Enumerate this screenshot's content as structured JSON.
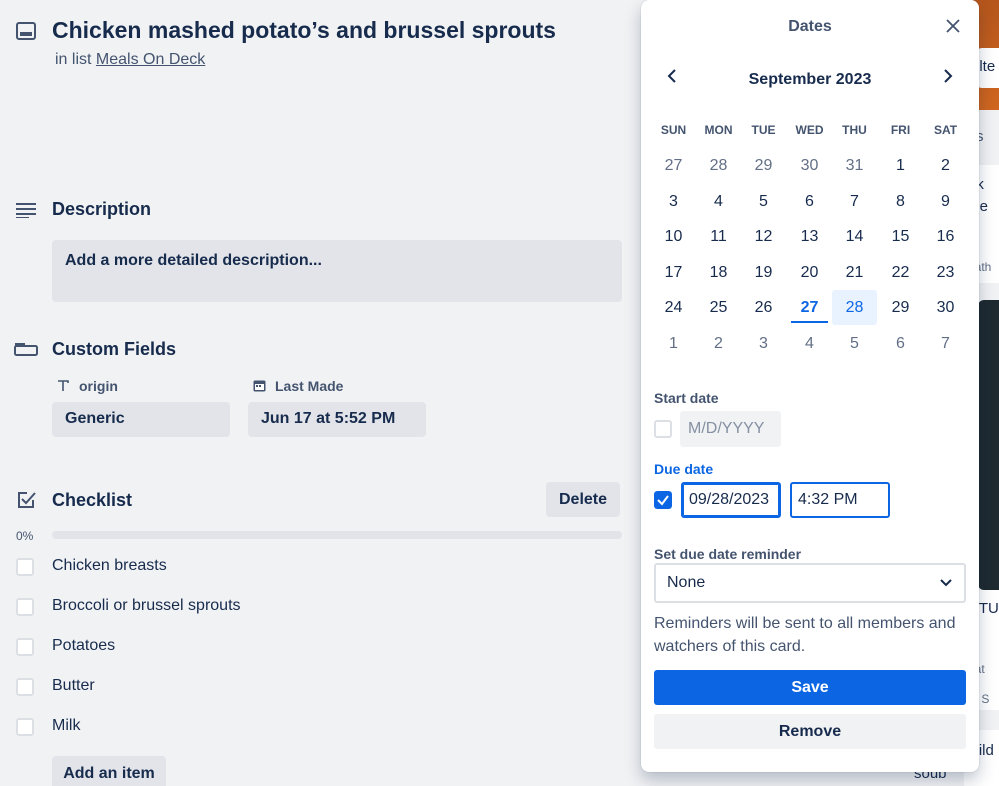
{
  "card": {
    "title": "Chicken mashed potato’s and brussel sprouts",
    "in_list_prefix": "in list",
    "list_name": "Meals On Deck"
  },
  "description": {
    "title": "Description",
    "placeholder": "Add a more detailed description..."
  },
  "custom_fields": {
    "title": "Custom Fields",
    "fields": [
      {
        "label": "origin",
        "value": "Generic",
        "icon": "text-type-icon"
      },
      {
        "label": "Last Made",
        "value": "Jun 17 at 5:52 PM",
        "icon": "calendar-icon"
      }
    ]
  },
  "checklist": {
    "title": "Checklist",
    "delete_label": "Delete",
    "progress_label": "0%",
    "progress": 0,
    "items": [
      {
        "label": "Chicken breasts",
        "checked": false
      },
      {
        "label": "Broccoli or brussel sprouts",
        "checked": false
      },
      {
        "label": "Potatoes",
        "checked": false
      },
      {
        "label": "Butter",
        "checked": false
      },
      {
        "label": "Milk",
        "checked": false
      }
    ],
    "add_item_label": "Add an item"
  },
  "background": {
    "fragments": [
      "ilte",
      "s",
      "ek",
      "nie",
      "eath",
      "UTU",
      "eat",
      "e: S",
      "wild",
      "soub"
    ]
  },
  "dates_popover": {
    "title": "Dates",
    "month_label": "September 2023",
    "weekdays": [
      "SUN",
      "MON",
      "TUE",
      "WED",
      "THU",
      "FRI",
      "SAT"
    ],
    "weeks": [
      [
        {
          "d": "27",
          "o": true
        },
        {
          "d": "28",
          "o": true
        },
        {
          "d": "29",
          "o": true
        },
        {
          "d": "30",
          "o": true
        },
        {
          "d": "31",
          "o": true
        },
        {
          "d": "1"
        },
        {
          "d": "2"
        }
      ],
      [
        {
          "d": "3"
        },
        {
          "d": "4"
        },
        {
          "d": "5"
        },
        {
          "d": "6"
        },
        {
          "d": "7"
        },
        {
          "d": "8"
        },
        {
          "d": "9"
        }
      ],
      [
        {
          "d": "10"
        },
        {
          "d": "11"
        },
        {
          "d": "12"
        },
        {
          "d": "13"
        },
        {
          "d": "14"
        },
        {
          "d": "15"
        },
        {
          "d": "16"
        }
      ],
      [
        {
          "d": "17"
        },
        {
          "d": "18"
        },
        {
          "d": "19"
        },
        {
          "d": "20"
        },
        {
          "d": "21"
        },
        {
          "d": "22"
        },
        {
          "d": "23"
        }
      ],
      [
        {
          "d": "24"
        },
        {
          "d": "25"
        },
        {
          "d": "26"
        },
        {
          "d": "27",
          "today": true
        },
        {
          "d": "28",
          "selected": true
        },
        {
          "d": "29"
        },
        {
          "d": "30"
        }
      ],
      [
        {
          "d": "1",
          "o": true
        },
        {
          "d": "2",
          "o": true
        },
        {
          "d": "3",
          "o": true
        },
        {
          "d": "4",
          "o": true
        },
        {
          "d": "5",
          "o": true
        },
        {
          "d": "6",
          "o": true
        },
        {
          "d": "7",
          "o": true
        }
      ]
    ],
    "start_date": {
      "label": "Start date",
      "placeholder": "M/D/YYYY",
      "checked": false
    },
    "due_date": {
      "label": "Due date",
      "date_value": "09/28/2023",
      "time_value": "4:32 PM",
      "checked": true
    },
    "reminder": {
      "label": "Set due date reminder",
      "selected": "None"
    },
    "help_text": "Reminders will be sent to all members and watchers of this card.",
    "save_label": "Save",
    "remove_label": "Remove"
  },
  "colors": {
    "accent": "#0c66e4",
    "text": "#172b4d",
    "subtle": "#44546f",
    "surface": "#f1f2f4",
    "field": "#e2e4e9"
  }
}
